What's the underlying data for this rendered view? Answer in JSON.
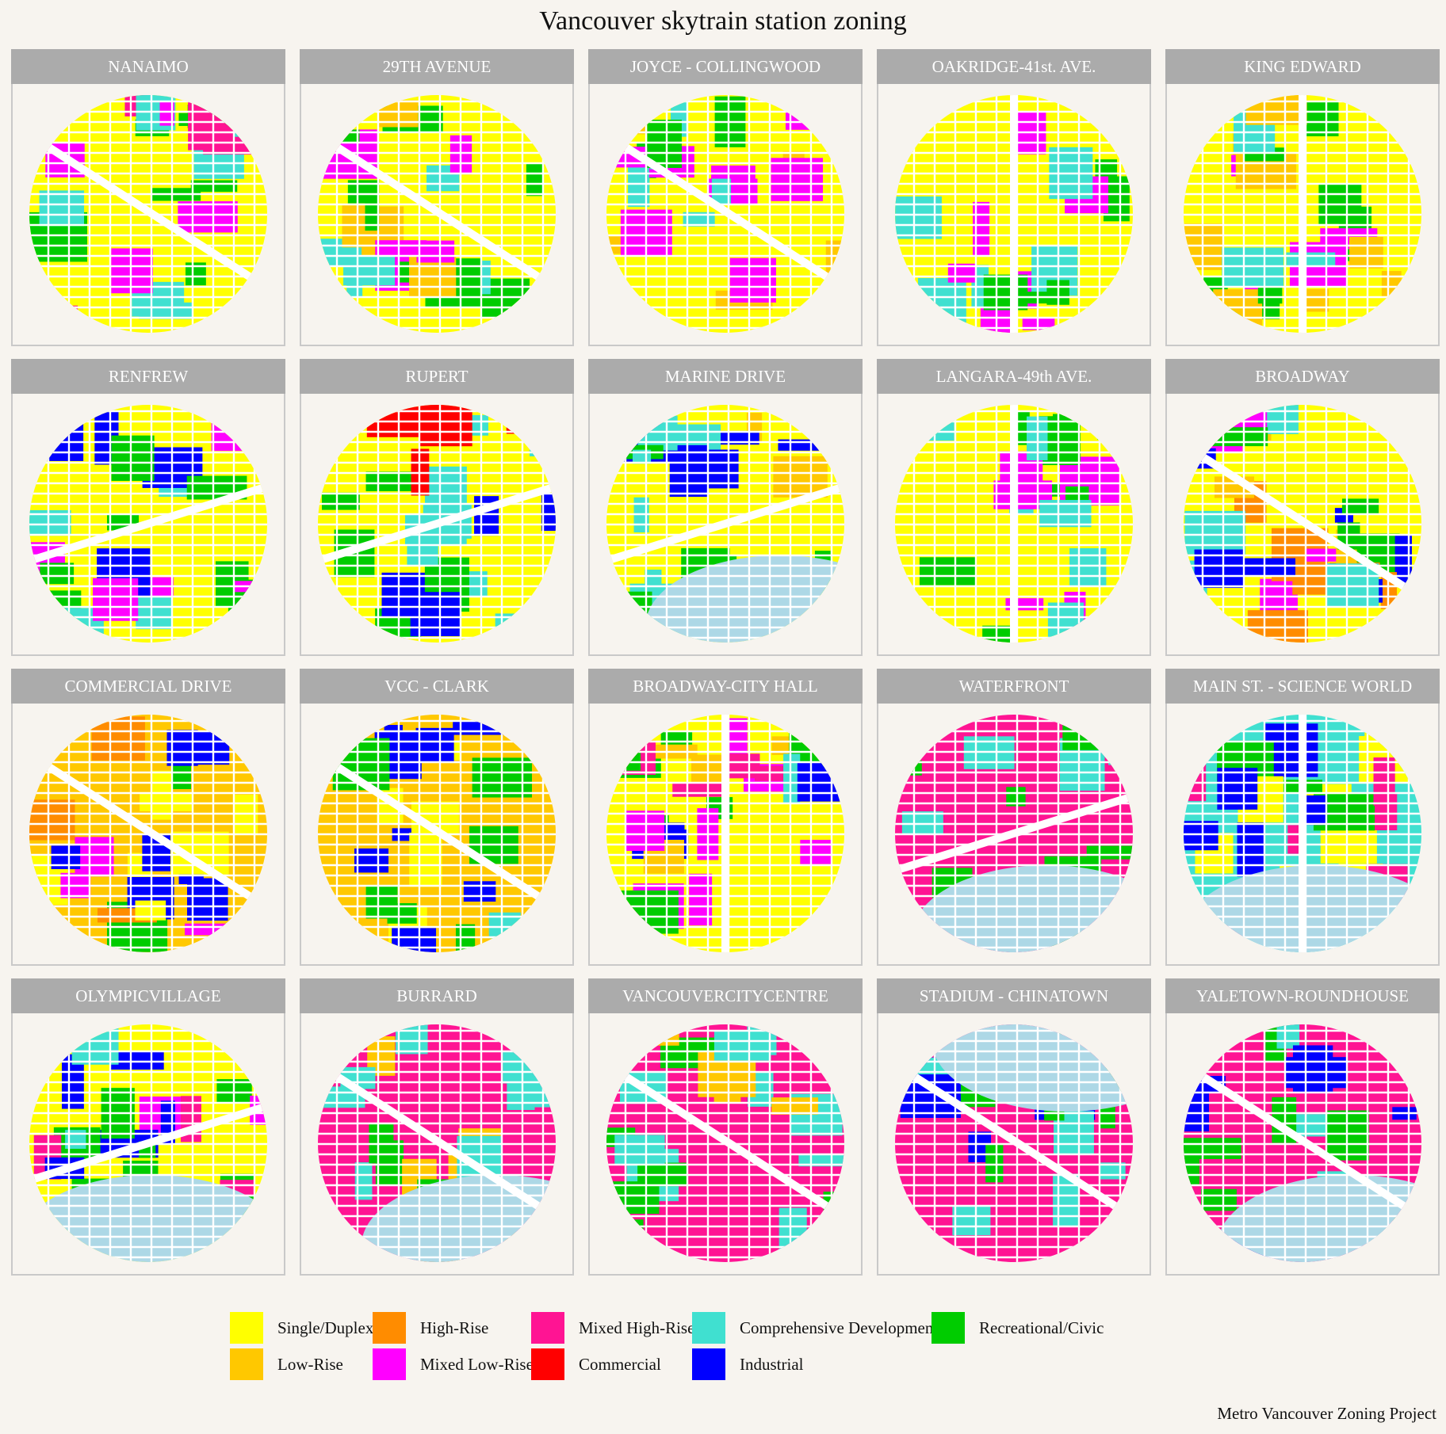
{
  "title": "Vancouver skytrain station zoning",
  "caption": "Metro Vancouver Zoning Project",
  "zones": [
    {
      "id": "single",
      "label": "Single/Duplex",
      "color": "#ffff00"
    },
    {
      "id": "lowrise",
      "label": "Low-Rise",
      "color": "#ffc800"
    },
    {
      "id": "highrise",
      "label": "High-Rise",
      "color": "#ff8c00"
    },
    {
      "id": "mixedlow",
      "label": "Mixed Low-Rise",
      "color": "#ff00ff"
    },
    {
      "id": "mixedhigh",
      "label": "Mixed High-Rise",
      "color": "#ff1493"
    },
    {
      "id": "commercial",
      "label": "Commercial",
      "color": "#ff0000"
    },
    {
      "id": "comprehensive",
      "label": "Comprehensive Development",
      "color": "#40e0d0"
    },
    {
      "id": "industrial",
      "label": "Industrial",
      "color": "#0000ff"
    },
    {
      "id": "recreational",
      "label": "Recreational/Civic",
      "color": "#00cc00"
    }
  ],
  "water_color": "#add8e6",
  "stations": [
    {
      "name": "NANAIMO",
      "base": "single",
      "patches": [
        "recreational",
        "mixedlow",
        "comprehensive",
        "mixedhigh"
      ],
      "road": "diagonal-down"
    },
    {
      "name": "29TH AVENUE",
      "base": "single",
      "patches": [
        "recreational",
        "lowrise",
        "mixedlow",
        "comprehensive"
      ],
      "road": "diagonal-down"
    },
    {
      "name": "JOYCE - COLLINGWOOD",
      "base": "single",
      "patches": [
        "lowrise",
        "comprehensive",
        "mixedlow",
        "recreational"
      ],
      "road": "diagonal-down"
    },
    {
      "name": "OAKRIDGE-41st. AVE.",
      "base": "single",
      "patches": [
        "comprehensive",
        "recreational",
        "mixedlow"
      ],
      "road": "vertical"
    },
    {
      "name": "KING EDWARD",
      "base": "single",
      "patches": [
        "recreational",
        "lowrise",
        "comprehensive",
        "mixedlow"
      ],
      "road": "vertical"
    },
    {
      "name": "RENFREW",
      "base": "single",
      "patches": [
        "comprehensive",
        "recreational",
        "industrial",
        "mixedlow"
      ],
      "road": "diagonal-up"
    },
    {
      "name": "RUPERT",
      "base": "single",
      "patches": [
        "industrial",
        "comprehensive",
        "recreational",
        "commercial"
      ],
      "road": "diagonal-up"
    },
    {
      "name": "MARINE DRIVE",
      "base": "single",
      "patches": [
        "industrial",
        "recreational",
        "lowrise",
        "comprehensive"
      ],
      "road": "diagonal-up",
      "water": true
    },
    {
      "name": "LANGARA-49th AVE.",
      "base": "single",
      "patches": [
        "comprehensive",
        "recreational",
        "mixedlow"
      ],
      "road": "vertical"
    },
    {
      "name": "BROADWAY",
      "base": "single",
      "patches": [
        "lowrise",
        "highrise",
        "comprehensive",
        "industrial",
        "recreational",
        "mixedlow"
      ],
      "road": "diagonal-down"
    },
    {
      "name": "COMMERCIAL DRIVE",
      "base": "lowrise",
      "patches": [
        "single",
        "highrise",
        "industrial",
        "recreational",
        "mixedlow"
      ],
      "road": "diagonal-down"
    },
    {
      "name": "VCC - CLARK",
      "base": "lowrise",
      "patches": [
        "industrial",
        "comprehensive",
        "single",
        "recreational"
      ],
      "road": "diagonal-down"
    },
    {
      "name": "BROADWAY-CITY HALL",
      "base": "single",
      "patches": [
        "mixedlow",
        "comprehensive",
        "industrial",
        "mixedhigh",
        "lowrise",
        "recreational"
      ],
      "road": "vertical"
    },
    {
      "name": "WATERFRONT",
      "base": "mixedhigh",
      "patches": [
        "comprehensive",
        "recreational"
      ],
      "road": "diagonal-up",
      "water": true
    },
    {
      "name": "MAIN ST. - SCIENCE WORLD",
      "base": "comprehensive",
      "patches": [
        "industrial",
        "mixedhigh",
        "recreational",
        "single"
      ],
      "road": "vertical",
      "water": true
    },
    {
      "name": "OLYMPICVILLAGE",
      "base": "single",
      "patches": [
        "mixedlow",
        "comprehensive",
        "industrial",
        "mixedhigh",
        "recreational"
      ],
      "road": "diagonal-up",
      "water": true
    },
    {
      "name": "BURRARD",
      "base": "mixedhigh",
      "patches": [
        "comprehensive",
        "lowrise",
        "recreational"
      ],
      "road": "diagonal-down",
      "water": true
    },
    {
      "name": "VANCOUVERCITYCENTRE",
      "base": "mixedhigh",
      "patches": [
        "comprehensive",
        "lowrise",
        "recreational"
      ],
      "road": "diagonal-down"
    },
    {
      "name": "STADIUM - CHINATOWN",
      "base": "mixedhigh",
      "patches": [
        "comprehensive",
        "recreational",
        "industrial"
      ],
      "road": "diagonal-down",
      "water": true
    },
    {
      "name": "YALETOWN-ROUNDHOUSE",
      "base": "mixedhigh",
      "patches": [
        "comprehensive",
        "recreational",
        "industrial"
      ],
      "road": "diagonal-down",
      "water": true
    }
  ]
}
